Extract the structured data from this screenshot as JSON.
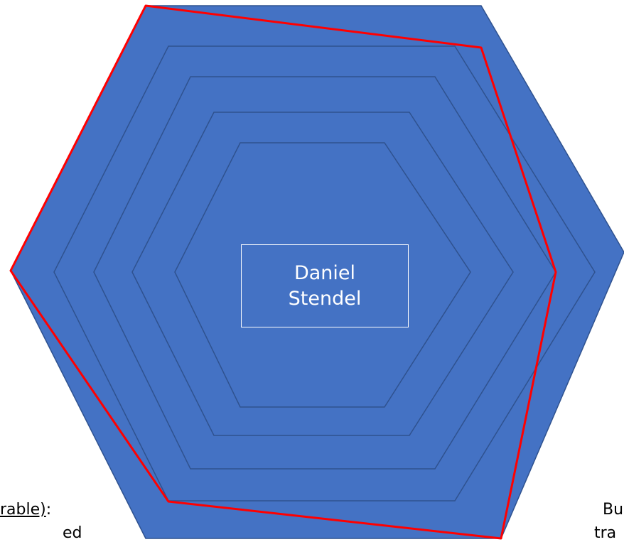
{
  "center": {
    "line1": "Daniel",
    "line2": "Stendel"
  },
  "captions": {
    "left_underlined": "rable)",
    "left_suffix": ":",
    "left_line2": "ed",
    "right_line1": "Bu",
    "right_line2": "tra"
  },
  "colors": {
    "fill": "#4472c4",
    "ring_stroke": "#2f528f",
    "profile_stroke": "#ff0000",
    "label_border": "#ffffff"
  }
}
